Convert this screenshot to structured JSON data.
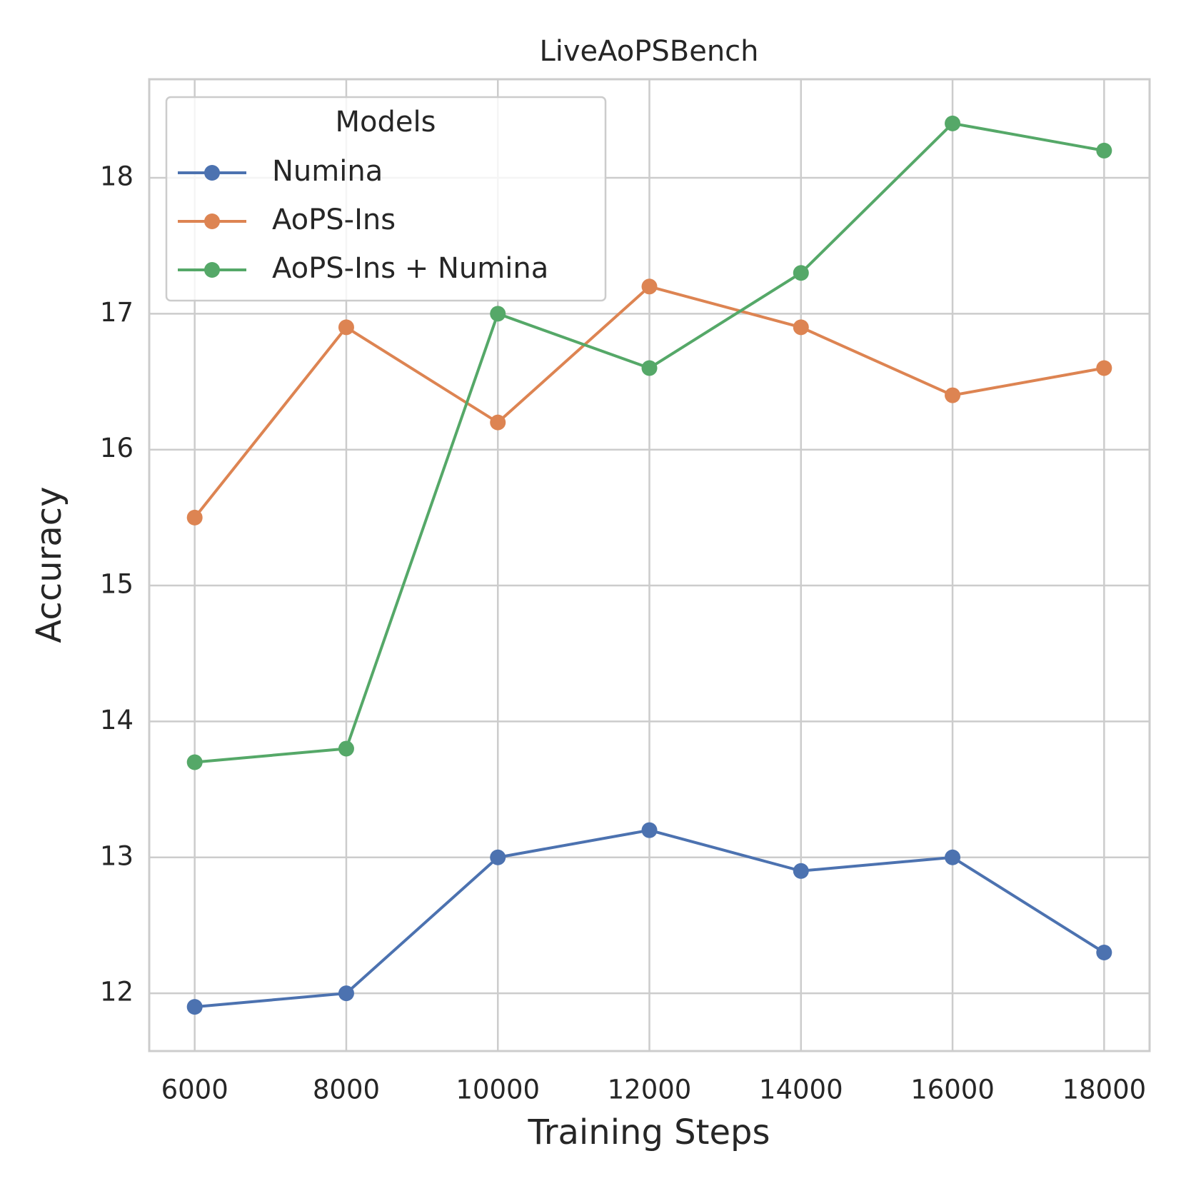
{
  "chart_data": {
    "type": "line",
    "title": "LiveAoPSBench",
    "x_label": "Training Steps",
    "y_label": "Accuracy",
    "x": [
      6000,
      8000,
      10000,
      12000,
      14000,
      16000,
      18000
    ],
    "series": [
      {
        "name": "Numina",
        "color": "#4c72b0",
        "values": [
          11.9,
          12.0,
          13.0,
          13.2,
          12.9,
          13.0,
          12.3
        ]
      },
      {
        "name": "AoPS-Ins",
        "color": "#dd8452",
        "values": [
          15.5,
          16.9,
          16.2,
          17.2,
          16.9,
          16.4,
          16.6
        ]
      },
      {
        "name": "AoPS-Ins + Numina",
        "color": "#55a868",
        "values": [
          13.7,
          13.8,
          17.0,
          16.6,
          17.3,
          18.4,
          18.2
        ]
      }
    ],
    "legend_title": "Models",
    "legend_position": "upper-left",
    "xlim": [
      5400,
      18600
    ],
    "xticks": [
      6000,
      8000,
      10000,
      12000,
      14000,
      16000,
      18000
    ],
    "ylim": [
      11.575,
      18.725
    ],
    "yticks": [
      12,
      13,
      14,
      15,
      16,
      17,
      18
    ],
    "grid": true
  }
}
